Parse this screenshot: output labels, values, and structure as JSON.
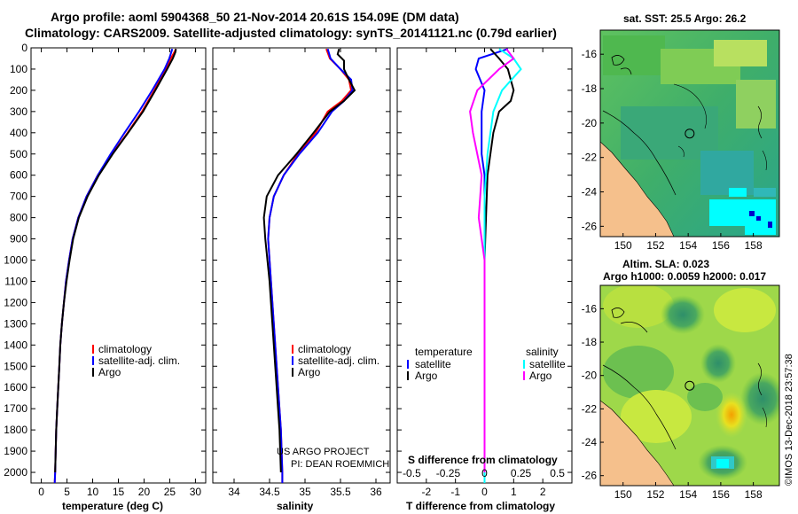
{
  "title_line1": "Argo profile: aoml 5904368_50 21-Nov-2014 20.61S 154.09E (DM data)",
  "title_line2": "Climatology: CARS2009. Satellite-adjusted climatology: synTS_20141121.nc (0.79d earlier)",
  "colors": {
    "red": "#ff0000",
    "blue": "#0000ff",
    "black": "#000000",
    "cyan": "#00ffff",
    "magenta": "#ff00ff"
  },
  "credit": "US ARGO PROJECT\nPI: DEAN ROEMMICH",
  "imos_stamp": "©IMOS 13-Dec-2018 23:57:38",
  "chart_data": [
    {
      "type": "line",
      "panel": "temperature",
      "xlabel": "temperature (deg C)",
      "ylabel": "",
      "xlim": [
        -2,
        32
      ],
      "ylim": [
        2050,
        0
      ],
      "xticks": [
        "0",
        "5",
        "10",
        "15",
        "20",
        "25",
        "30"
      ],
      "xtick_values": [
        0,
        5,
        10,
        15,
        20,
        25,
        30
      ],
      "yticks": [
        "0",
        "100",
        "200",
        "300",
        "400",
        "500",
        "600",
        "700",
        "800",
        "900",
        "1000",
        "1100",
        "1200",
        "1300",
        "1400",
        "1500",
        "1600",
        "1700",
        "1800",
        "1900",
        "2000"
      ],
      "legend": [
        "climatology",
        "satellite-adj. clim.",
        "Argo"
      ],
      "series": [
        {
          "name": "climatology",
          "color": "red",
          "points": [
            [
              26.2,
              5
            ],
            [
              25.9,
              20
            ],
            [
              25.2,
              50
            ],
            [
              24.2,
              100
            ],
            [
              22.0,
              200
            ],
            [
              19.6,
              300
            ],
            [
              16.8,
              400
            ],
            [
              13.8,
              500
            ],
            [
              11.0,
              600
            ],
            [
              8.8,
              700
            ],
            [
              7.2,
              800
            ],
            [
              6.1,
              900
            ],
            [
              5.4,
              1000
            ],
            [
              4.8,
              1100
            ],
            [
              4.4,
              1200
            ],
            [
              4.0,
              1300
            ],
            [
              3.7,
              1400
            ],
            [
              3.5,
              1500
            ],
            [
              3.3,
              1600
            ],
            [
              3.1,
              1700
            ],
            [
              2.9,
              1800
            ],
            [
              2.8,
              1900
            ],
            [
              2.7,
              2000
            ],
            [
              2.6,
              2050
            ]
          ]
        },
        {
          "name": "satellite",
          "color": "blue",
          "points": [
            [
              25.5,
              5
            ],
            [
              25.3,
              20
            ],
            [
              24.9,
              50
            ],
            [
              24.0,
              100
            ],
            [
              21.6,
              200
            ],
            [
              19.0,
              300
            ],
            [
              16.2,
              400
            ],
            [
              13.5,
              500
            ],
            [
              11.0,
              600
            ],
            [
              8.8,
              700
            ],
            [
              7.2,
              800
            ],
            [
              6.1,
              900
            ],
            [
              5.4,
              1000
            ],
            [
              4.8,
              1100
            ],
            [
              4.4,
              1200
            ],
            [
              4.0,
              1300
            ],
            [
              3.7,
              1400
            ],
            [
              3.5,
              1500
            ],
            [
              3.3,
              1600
            ],
            [
              3.1,
              1700
            ],
            [
              2.9,
              1800
            ],
            [
              2.8,
              1900
            ],
            [
              2.7,
              2000
            ],
            [
              2.6,
              2050
            ]
          ]
        },
        {
          "name": "Argo",
          "color": "black",
          "points": [
            [
              26.2,
              5
            ],
            [
              26.1,
              20
            ],
            [
              25.6,
              50
            ],
            [
              24.5,
              100
            ],
            [
              22.2,
              200
            ],
            [
              19.8,
              300
            ],
            [
              16.9,
              400
            ],
            [
              13.9,
              500
            ],
            [
              11.2,
              600
            ],
            [
              9.0,
              700
            ],
            [
              7.3,
              800
            ],
            [
              6.2,
              900
            ],
            [
              5.5,
              1000
            ],
            [
              4.9,
              1100
            ],
            [
              4.4,
              1200
            ],
            [
              4.0,
              1300
            ],
            [
              3.7,
              1400
            ],
            [
              3.5,
              1500
            ],
            [
              3.3,
              1600
            ],
            [
              3.1,
              1700
            ],
            [
              2.9,
              1800
            ],
            [
              2.8,
              1900
            ],
            [
              2.7,
              2000
            ]
          ]
        }
      ]
    },
    {
      "type": "line",
      "panel": "salinity",
      "xlabel": "salinity",
      "ylabel": "",
      "xlim": [
        33.7,
        36.2
      ],
      "ylim": [
        2050,
        0
      ],
      "xticks": [
        "34",
        "34.5",
        "35",
        "35.5",
        "36"
      ],
      "xtick_values": [
        34,
        34.5,
        35,
        35.5,
        36
      ],
      "legend": [
        "climatology",
        "satellite-adj. clim.",
        "Argo"
      ],
      "series": [
        {
          "name": "climatology",
          "color": "red",
          "points": [
            [
              35.3,
              5
            ],
            [
              35.35,
              50
            ],
            [
              35.5,
              100
            ],
            [
              35.62,
              150
            ],
            [
              35.65,
              200
            ],
            [
              35.52,
              250
            ],
            [
              35.32,
              300
            ],
            [
              35.15,
              400
            ],
            [
              34.9,
              500
            ],
            [
              34.7,
              600
            ],
            [
              34.56,
              700
            ],
            [
              34.5,
              800
            ],
            [
              34.48,
              900
            ],
            [
              34.5,
              1000
            ],
            [
              34.52,
              1100
            ],
            [
              34.54,
              1200
            ],
            [
              34.56,
              1300
            ],
            [
              34.58,
              1400
            ],
            [
              34.6,
              1500
            ],
            [
              34.62,
              1600
            ],
            [
              34.64,
              1700
            ],
            [
              34.66,
              1800
            ],
            [
              34.67,
              1900
            ],
            [
              34.68,
              2000
            ],
            [
              34.68,
              2050
            ]
          ]
        },
        {
          "name": "satellite",
          "color": "blue",
          "points": [
            [
              35.32,
              5
            ],
            [
              35.36,
              50
            ],
            [
              35.5,
              100
            ],
            [
              35.65,
              150
            ],
            [
              35.67,
              200
            ],
            [
              35.55,
              250
            ],
            [
              35.38,
              300
            ],
            [
              35.18,
              400
            ],
            [
              34.92,
              500
            ],
            [
              34.7,
              600
            ],
            [
              34.56,
              700
            ],
            [
              34.5,
              800
            ],
            [
              34.48,
              900
            ],
            [
              34.5,
              1000
            ],
            [
              34.52,
              1100
            ],
            [
              34.54,
              1200
            ],
            [
              34.56,
              1300
            ],
            [
              34.58,
              1400
            ],
            [
              34.6,
              1500
            ],
            [
              34.62,
              1600
            ],
            [
              34.64,
              1700
            ],
            [
              34.66,
              1800
            ],
            [
              34.67,
              1900
            ],
            [
              34.68,
              2000
            ],
            [
              34.68,
              2050
            ]
          ]
        },
        {
          "name": "Argo",
          "color": "black",
          "points": [
            [
              35.48,
              5
            ],
            [
              35.46,
              30
            ],
            [
              35.55,
              60
            ],
            [
              35.55,
              100
            ],
            [
              35.62,
              150
            ],
            [
              35.7,
              200
            ],
            [
              35.55,
              250
            ],
            [
              35.35,
              300
            ],
            [
              35.12,
              400
            ],
            [
              34.88,
              500
            ],
            [
              34.62,
              600
            ],
            [
              34.46,
              700
            ],
            [
              34.42,
              800
            ],
            [
              34.44,
              900
            ],
            [
              34.47,
              1000
            ],
            [
              34.5,
              1100
            ],
            [
              34.52,
              1200
            ],
            [
              34.54,
              1300
            ],
            [
              34.56,
              1400
            ],
            [
              34.58,
              1500
            ],
            [
              34.6,
              1600
            ],
            [
              34.62,
              1700
            ],
            [
              34.64,
              1800
            ],
            [
              34.65,
              1900
            ],
            [
              34.66,
              2000
            ]
          ]
        }
      ]
    },
    {
      "type": "line",
      "panel": "difference",
      "xlabel": "T difference from climatology",
      "xlabel_top": "S difference from climatology",
      "xlim": [
        -3,
        3
      ],
      "xlim_salinity": [
        -0.6,
        0.6
      ],
      "ylim": [
        2050,
        0
      ],
      "xticks": [
        "-2",
        "-1",
        "0",
        "1",
        "2"
      ],
      "xtick_values": [
        -2,
        -1,
        0,
        1,
        2
      ],
      "xticks_top": [
        "-0.5",
        "-0.25",
        "0",
        "0.25",
        "0.5"
      ],
      "xtick_top_values": [
        -0.5,
        -0.25,
        0,
        0.25,
        0.5
      ],
      "legend_left_head": "temperature",
      "legend_right_head": "salinity",
      "legend_left": [
        "satellite",
        "Argo"
      ],
      "legend_right": [
        "satellite",
        "Argo"
      ],
      "series": [
        {
          "name": "T satellite",
          "color": "blue",
          "points": [
            [
              0.8,
              5
            ],
            [
              -0.2,
              50
            ],
            [
              -0.3,
              100
            ],
            [
              0.0,
              200
            ],
            [
              -0.1,
              300
            ],
            [
              -0.1,
              400
            ],
            [
              -0.1,
              500
            ],
            [
              0.0,
              600
            ],
            [
              0.0,
              800
            ],
            [
              0.0,
              1000
            ],
            [
              0.0,
              1500
            ],
            [
              0.0,
              2050
            ]
          ]
        },
        {
          "name": "T Argo",
          "color": "black",
          "points": [
            [
              0.2,
              5
            ],
            [
              0.5,
              50
            ],
            [
              0.8,
              100
            ],
            [
              0.9,
              150
            ],
            [
              1.0,
              200
            ],
            [
              0.9,
              250
            ],
            [
              0.5,
              300
            ],
            [
              0.3,
              400
            ],
            [
              0.2,
              500
            ],
            [
              0.1,
              600
            ],
            [
              0.05,
              800
            ],
            [
              0.0,
              1000
            ],
            [
              0.0,
              1500
            ],
            [
              0.0,
              2000
            ]
          ]
        },
        {
          "name": "S satellite",
          "color": "cyan",
          "points": [
            [
              0.1,
              5
            ],
            [
              0.2,
              50
            ],
            [
              0.25,
              100
            ],
            [
              0.12,
              200
            ],
            [
              0.06,
              300
            ],
            [
              0.02,
              500
            ],
            [
              0.0,
              700
            ],
            [
              0.0,
              1000
            ],
            [
              0.0,
              2050
            ]
          ]
        },
        {
          "name": "S Argo",
          "color": "magenta",
          "points": [
            [
              0.15,
              5
            ],
            [
              0.2,
              50
            ],
            [
              0.1,
              100
            ],
            [
              -0.05,
              200
            ],
            [
              -0.1,
              300
            ],
            [
              -0.08,
              400
            ],
            [
              -0.05,
              500
            ],
            [
              -0.02,
              600
            ],
            [
              -0.03,
              700
            ],
            [
              -0.04,
              800
            ],
            [
              -0.02,
              900
            ],
            [
              0.0,
              1000
            ],
            [
              0.0,
              1500
            ],
            [
              0.0,
              2000
            ]
          ]
        }
      ]
    },
    {
      "type": "heatmap",
      "panel": "sst-map",
      "title": "sat. SST: 25.5 Argo: 26.2",
      "xticks": [
        "150",
        "152",
        "154",
        "156",
        "158"
      ],
      "xtick_values": [
        150,
        152,
        154,
        156,
        158
      ],
      "yticks": [
        "-16",
        "-18",
        "-20",
        "-22",
        "-24",
        "-26"
      ],
      "ytick_values": [
        -16,
        -18,
        -20,
        -22,
        -24,
        -26
      ],
      "lon_range": [
        148.6,
        159.6
      ],
      "lat_range": [
        -26.6,
        -14.6
      ],
      "float_position": [
        154.09,
        -20.61
      ]
    },
    {
      "type": "heatmap",
      "panel": "sla-map",
      "title": "Altim. SLA: 0.023",
      "subtitle": "Argo h1000: 0.0059 h2000: 0.017",
      "xticks": [
        "150",
        "152",
        "154",
        "156",
        "158"
      ],
      "xtick_values": [
        150,
        152,
        154,
        156,
        158
      ],
      "yticks": [
        "-16",
        "-18",
        "-20",
        "-22",
        "-24",
        "-26"
      ],
      "ytick_values": [
        -16,
        -18,
        -20,
        -22,
        -24,
        -26
      ],
      "lon_range": [
        148.6,
        159.6
      ],
      "lat_range": [
        -26.6,
        -14.6
      ],
      "float_position": [
        154.09,
        -20.61
      ]
    }
  ]
}
